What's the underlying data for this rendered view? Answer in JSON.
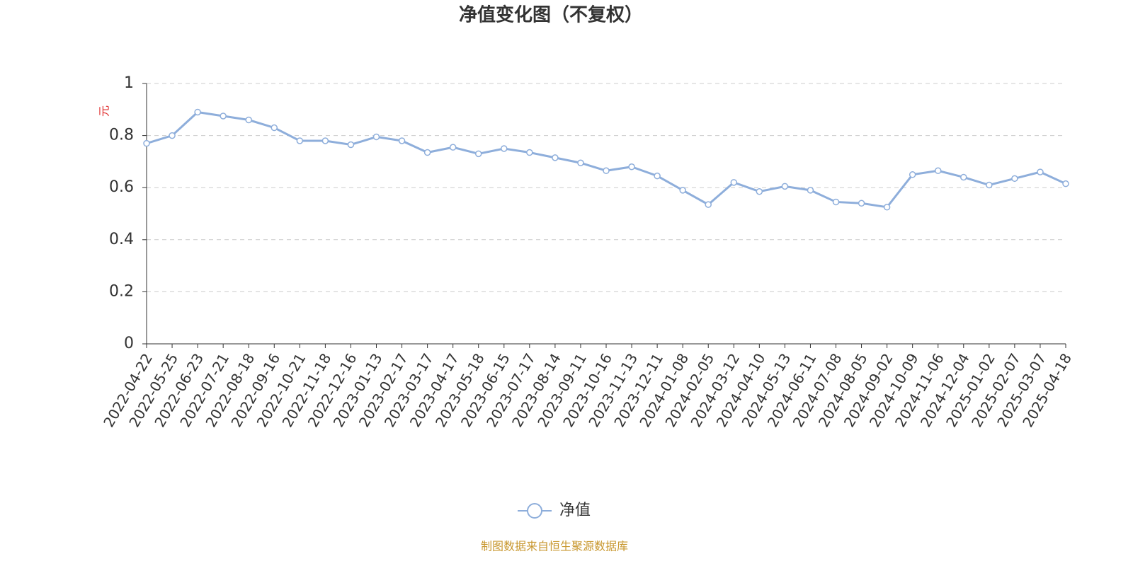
{
  "chart_data": {
    "type": "line",
    "title": "净值变化图（不复权）",
    "y_label": "元",
    "categories": [
      "2022-04-22",
      "2022-05-25",
      "2022-06-23",
      "2022-07-21",
      "2022-08-18",
      "2022-09-16",
      "2022-10-21",
      "2022-11-18",
      "2022-12-16",
      "2023-01-13",
      "2023-02-17",
      "2023-03-17",
      "2023-04-17",
      "2023-05-18",
      "2023-06-15",
      "2023-07-17",
      "2023-08-14",
      "2023-09-11",
      "2023-10-16",
      "2023-11-13",
      "2023-12-11",
      "2024-01-08",
      "2024-02-05",
      "2024-03-12",
      "2024-04-10",
      "2024-05-13",
      "2024-06-11",
      "2024-07-08",
      "2024-08-05",
      "2024-09-02",
      "2024-10-09",
      "2024-11-06",
      "2024-12-04",
      "2025-01-02",
      "2025-02-07",
      "2025-03-07",
      "2025-04-18"
    ],
    "series": [
      {
        "name": "净值",
        "color": "#8eaedb",
        "values": [
          0.77,
          0.8,
          0.89,
          0.875,
          0.86,
          0.83,
          0.78,
          0.78,
          0.765,
          0.795,
          0.78,
          0.735,
          0.755,
          0.73,
          0.75,
          0.735,
          0.715,
          0.695,
          0.665,
          0.68,
          0.645,
          0.59,
          0.535,
          0.62,
          0.585,
          0.605,
          0.59,
          0.545,
          0.54,
          0.525,
          0.65,
          0.665,
          0.64,
          0.61,
          0.635,
          0.66,
          0.615
        ]
      }
    ],
    "ylim": [
      0,
      1
    ],
    "yticks": [
      0,
      0.2,
      0.4,
      0.6,
      0.8,
      1
    ],
    "grid": true,
    "source": "制图数据来自恒生聚源数据库"
  }
}
